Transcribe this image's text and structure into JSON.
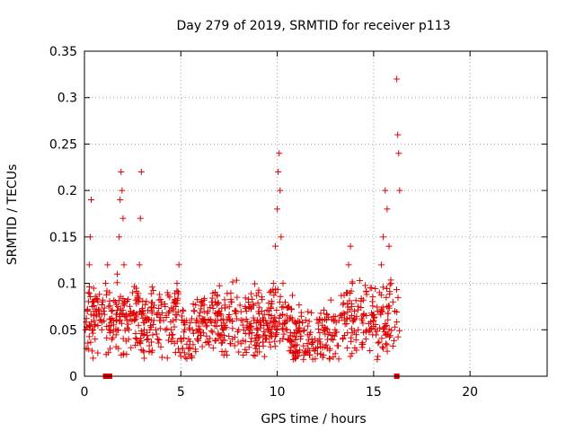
{
  "chart_data": {
    "type": "scatter",
    "title": "Day 279 of 2019, SRMTID for receiver p113",
    "xlabel": "GPS time / hours",
    "ylabel": "SRMTID / TECUs",
    "xlim": [
      0,
      24
    ],
    "ylim": [
      0,
      0.35
    ],
    "xticks": [
      0,
      5,
      10,
      15,
      20
    ],
    "xtick_labels": [
      "0",
      "5",
      "10",
      "15",
      "20"
    ],
    "yticks": [
      0,
      0.05,
      0.1,
      0.15,
      0.2,
      0.25,
      0.3,
      0.35
    ],
    "ytick_labels": [
      "0",
      "0.05",
      "0.1",
      "0.15",
      "0.2",
      "0.25",
      "0.3",
      "0.35"
    ],
    "grid": true,
    "marker": "plus",
    "color": "#e00000",
    "series": [
      {
        "name": "SRMTID",
        "x": [
          0.05,
          0.1,
          0.15,
          0.2,
          0.25,
          0.3,
          0.35,
          0.4,
          0.45,
          0.5,
          0.55,
          0.6,
          0.7,
          0.8,
          0.9,
          1.0,
          1.1,
          1.2,
          1.3,
          1.4,
          1.5,
          1.6,
          1.7,
          1.8,
          1.85,
          1.9,
          1.95,
          2.0,
          2.05,
          2.1,
          2.2,
          2.3,
          2.4,
          2.5,
          2.6,
          2.7,
          2.8,
          2.85,
          2.9,
          2.95,
          3.0,
          3.1,
          3.2,
          3.3,
          3.4,
          3.5,
          3.6,
          3.7,
          3.8,
          3.9,
          4.0,
          4.1,
          4.2,
          4.3,
          4.4,
          4.5,
          4.6,
          4.7,
          4.8,
          4.9,
          5.0,
          5.1,
          5.2,
          5.3,
          5.4,
          5.5,
          5.6,
          5.7,
          5.8,
          5.9,
          6.0,
          6.2,
          6.4,
          6.6,
          6.8,
          7.0,
          7.2,
          7.4,
          7.6,
          7.8,
          8.0,
          8.2,
          8.4,
          8.6,
          8.8,
          9.0,
          9.2,
          9.4,
          9.6,
          9.8,
          9.9,
          10.0,
          10.05,
          10.1,
          10.15,
          10.2,
          10.3,
          10.4,
          10.5,
          10.6,
          10.8,
          11.0,
          11.2,
          11.4,
          11.6,
          11.8,
          12.0,
          12.2,
          12.4,
          12.6,
          12.8,
          13.0,
          13.2,
          13.4,
          13.5,
          13.6,
          13.7,
          13.8,
          13.9,
          14.0,
          14.2,
          14.4,
          14.6,
          14.8,
          15.0,
          15.2,
          15.3,
          15.4,
          15.5,
          15.6,
          15.7,
          15.8,
          15.9,
          16.0,
          16.1,
          16.2,
          16.25,
          16.3,
          16.35
        ],
        "y": [
          0.05,
          0.03,
          0.07,
          0.09,
          0.12,
          0.15,
          0.19,
          0.08,
          0.05,
          0.06,
          0.04,
          0.07,
          0.08,
          0.06,
          0.05,
          0.07,
          0.1,
          0.12,
          0.09,
          0.07,
          0.06,
          0.08,
          0.11,
          0.15,
          0.19,
          0.22,
          0.2,
          0.17,
          0.12,
          0.08,
          0.06,
          0.05,
          0.07,
          0.09,
          0.06,
          0.04,
          0.08,
          0.12,
          0.17,
          0.22,
          0.07,
          0.05,
          0.06,
          0.04,
          0.05,
          0.07,
          0.06,
          0.05,
          0.04,
          0.06,
          0.08,
          0.06,
          0.05,
          0.09,
          0.07,
          0.05,
          0.06,
          0.08,
          0.1,
          0.12,
          0.04,
          0.03,
          0.05,
          0.06,
          0.04,
          0.03,
          0.05,
          0.07,
          0.06,
          0.04,
          0.05,
          0.06,
          0.07,
          0.08,
          0.06,
          0.07,
          0.05,
          0.06,
          0.08,
          0.07,
          0.05,
          0.06,
          0.07,
          0.05,
          0.06,
          0.05,
          0.07,
          0.06,
          0.05,
          0.1,
          0.14,
          0.18,
          0.22,
          0.24,
          0.2,
          0.15,
          0.1,
          0.06,
          0.05,
          0.04,
          0.06,
          0.05,
          0.04,
          0.05,
          0.03,
          0.04,
          0.03,
          0.04,
          0.05,
          0.03,
          0.04,
          0.05,
          0.06,
          0.04,
          0.06,
          0.09,
          0.12,
          0.14,
          0.1,
          0.07,
          0.05,
          0.06,
          0.04,
          0.05,
          0.06,
          0.07,
          0.09,
          0.12,
          0.15,
          0.2,
          0.18,
          0.14,
          0.1,
          0.08,
          0.07,
          0.32,
          0.26,
          0.24,
          0.2
        ],
        "y_range_visible": [
          0.02,
          0.32
        ]
      },
      {
        "name": "flags",
        "x": [
          1.1,
          1.3,
          16.2
        ],
        "y": [
          0,
          0,
          0
        ]
      }
    ]
  },
  "background": "#ffffff",
  "point_color": "#e00000",
  "grid_color": "#a0a0a0"
}
